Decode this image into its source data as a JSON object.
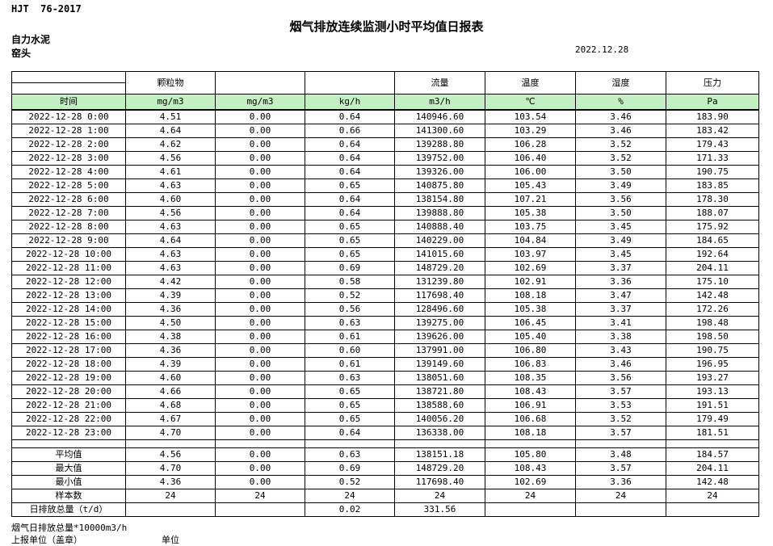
{
  "meta": {
    "standard_code": "HJT  76-2017",
    "title": "烟气排放连续监测小时平均值日报表",
    "company": "自力水泥",
    "station": "窑头",
    "date": "2022.12.28"
  },
  "colors": {
    "header_green": "#C2F0C2"
  },
  "table": {
    "time_label": "时间",
    "group_headers": [
      "颗粒物",
      "",
      "",
      "流量",
      "温度",
      "湿度",
      "压力"
    ],
    "units": [
      "mg/m3",
      "mg/m3",
      "kg/h",
      "m3/h",
      "℃",
      "%",
      "Pa"
    ],
    "rows": [
      {
        "time": "2022-12-28 0:00",
        "values": [
          "4.51",
          "0.00",
          "0.64",
          "140946.60",
          "103.54",
          "3.46",
          "183.90"
        ]
      },
      {
        "time": "2022-12-28 1:00",
        "values": [
          "4.64",
          "0.00",
          "0.66",
          "141300.60",
          "103.29",
          "3.46",
          "183.42"
        ]
      },
      {
        "time": "2022-12-28 2:00",
        "values": [
          "4.62",
          "0.00",
          "0.64",
          "139288.80",
          "106.28",
          "3.52",
          "179.43"
        ]
      },
      {
        "time": "2022-12-28 3:00",
        "values": [
          "4.56",
          "0.00",
          "0.64",
          "139752.00",
          "106.40",
          "3.52",
          "171.33"
        ]
      },
      {
        "time": "2022-12-28 4:00",
        "values": [
          "4.61",
          "0.00",
          "0.64",
          "139326.00",
          "106.00",
          "3.50",
          "190.75"
        ]
      },
      {
        "time": "2022-12-28 5:00",
        "values": [
          "4.63",
          "0.00",
          "0.65",
          "140875.80",
          "105.43",
          "3.49",
          "183.85"
        ]
      },
      {
        "time": "2022-12-28 6:00",
        "values": [
          "4.60",
          "0.00",
          "0.64",
          "138154.80",
          "107.21",
          "3.56",
          "178.30"
        ]
      },
      {
        "time": "2022-12-28 7:00",
        "values": [
          "4.56",
          "0.00",
          "0.64",
          "139888.80",
          "105.38",
          "3.50",
          "188.07"
        ]
      },
      {
        "time": "2022-12-28 8:00",
        "values": [
          "4.63",
          "0.00",
          "0.65",
          "140888.40",
          "103.75",
          "3.45",
          "175.92"
        ]
      },
      {
        "time": "2022-12-28 9:00",
        "values": [
          "4.64",
          "0.00",
          "0.65",
          "140229.00",
          "104.84",
          "3.49",
          "184.65"
        ]
      },
      {
        "time": "2022-12-28 10:00",
        "values": [
          "4.63",
          "0.00",
          "0.65",
          "141015.60",
          "103.97",
          "3.45",
          "192.64"
        ]
      },
      {
        "time": "2022-12-28 11:00",
        "values": [
          "4.63",
          "0.00",
          "0.69",
          "148729.20",
          "102.69",
          "3.37",
          "204.11"
        ]
      },
      {
        "time": "2022-12-28 12:00",
        "values": [
          "4.42",
          "0.00",
          "0.58",
          "131239.80",
          "102.91",
          "3.36",
          "175.10"
        ]
      },
      {
        "time": "2022-12-28 13:00",
        "values": [
          "4.39",
          "0.00",
          "0.52",
          "117698.40",
          "108.18",
          "3.47",
          "142.48"
        ]
      },
      {
        "time": "2022-12-28 14:00",
        "values": [
          "4.36",
          "0.00",
          "0.56",
          "128496.60",
          "105.38",
          "3.37",
          "172.26"
        ]
      },
      {
        "time": "2022-12-28 15:00",
        "values": [
          "4.50",
          "0.00",
          "0.63",
          "139275.00",
          "106.45",
          "3.41",
          "198.48"
        ]
      },
      {
        "time": "2022-12-28 16:00",
        "values": [
          "4.38",
          "0.00",
          "0.61",
          "139626.00",
          "105.40",
          "3.38",
          "198.50"
        ]
      },
      {
        "time": "2022-12-28 17:00",
        "values": [
          "4.36",
          "0.00",
          "0.60",
          "137991.00",
          "106.80",
          "3.43",
          "190.75"
        ]
      },
      {
        "time": "2022-12-28 18:00",
        "values": [
          "4.39",
          "0.00",
          "0.61",
          "139149.60",
          "106.83",
          "3.46",
          "196.95"
        ]
      },
      {
        "time": "2022-12-28 19:00",
        "values": [
          "4.60",
          "0.00",
          "0.63",
          "138051.60",
          "108.35",
          "3.56",
          "193.27"
        ]
      },
      {
        "time": "2022-12-28 20:00",
        "values": [
          "4.66",
          "0.00",
          "0.65",
          "138721.80",
          "108.43",
          "3.57",
          "193.13"
        ]
      },
      {
        "time": "2022-12-28 21:00",
        "values": [
          "4.68",
          "0.00",
          "0.65",
          "138588.60",
          "106.91",
          "3.53",
          "191.51"
        ]
      },
      {
        "time": "2022-12-28 22:00",
        "values": [
          "4.67",
          "0.00",
          "0.65",
          "140056.20",
          "106.68",
          "3.52",
          "179.49"
        ]
      },
      {
        "time": "2022-12-28 23:00",
        "values": [
          "4.70",
          "0.00",
          "0.64",
          "136338.00",
          "108.18",
          "3.57",
          "181.51"
        ]
      }
    ],
    "summary": [
      {
        "label": "平均值",
        "values": [
          "4.56",
          "0.00",
          "0.63",
          "138151.18",
          "105.80",
          "3.48",
          "184.57"
        ]
      },
      {
        "label": "最大值",
        "values": [
          "4.70",
          "0.00",
          "0.69",
          "148729.20",
          "108.43",
          "3.57",
          "204.11"
        ]
      },
      {
        "label": "最小值",
        "values": [
          "4.36",
          "0.00",
          "0.52",
          "117698.40",
          "102.69",
          "3.36",
          "142.48"
        ]
      },
      {
        "label": "样本数",
        "values": [
          "24",
          "24",
          "24",
          "24",
          "24",
          "24",
          "24"
        ]
      },
      {
        "label": "日排放总量（t/d）",
        "values": [
          "",
          "",
          "0.02",
          "331.56",
          "",
          "",
          ""
        ]
      }
    ]
  },
  "footer": {
    "note": "烟气日排放总量*10000m3/h",
    "report_unit_label": "上报单位（盖章）",
    "unit_label": "单位"
  }
}
